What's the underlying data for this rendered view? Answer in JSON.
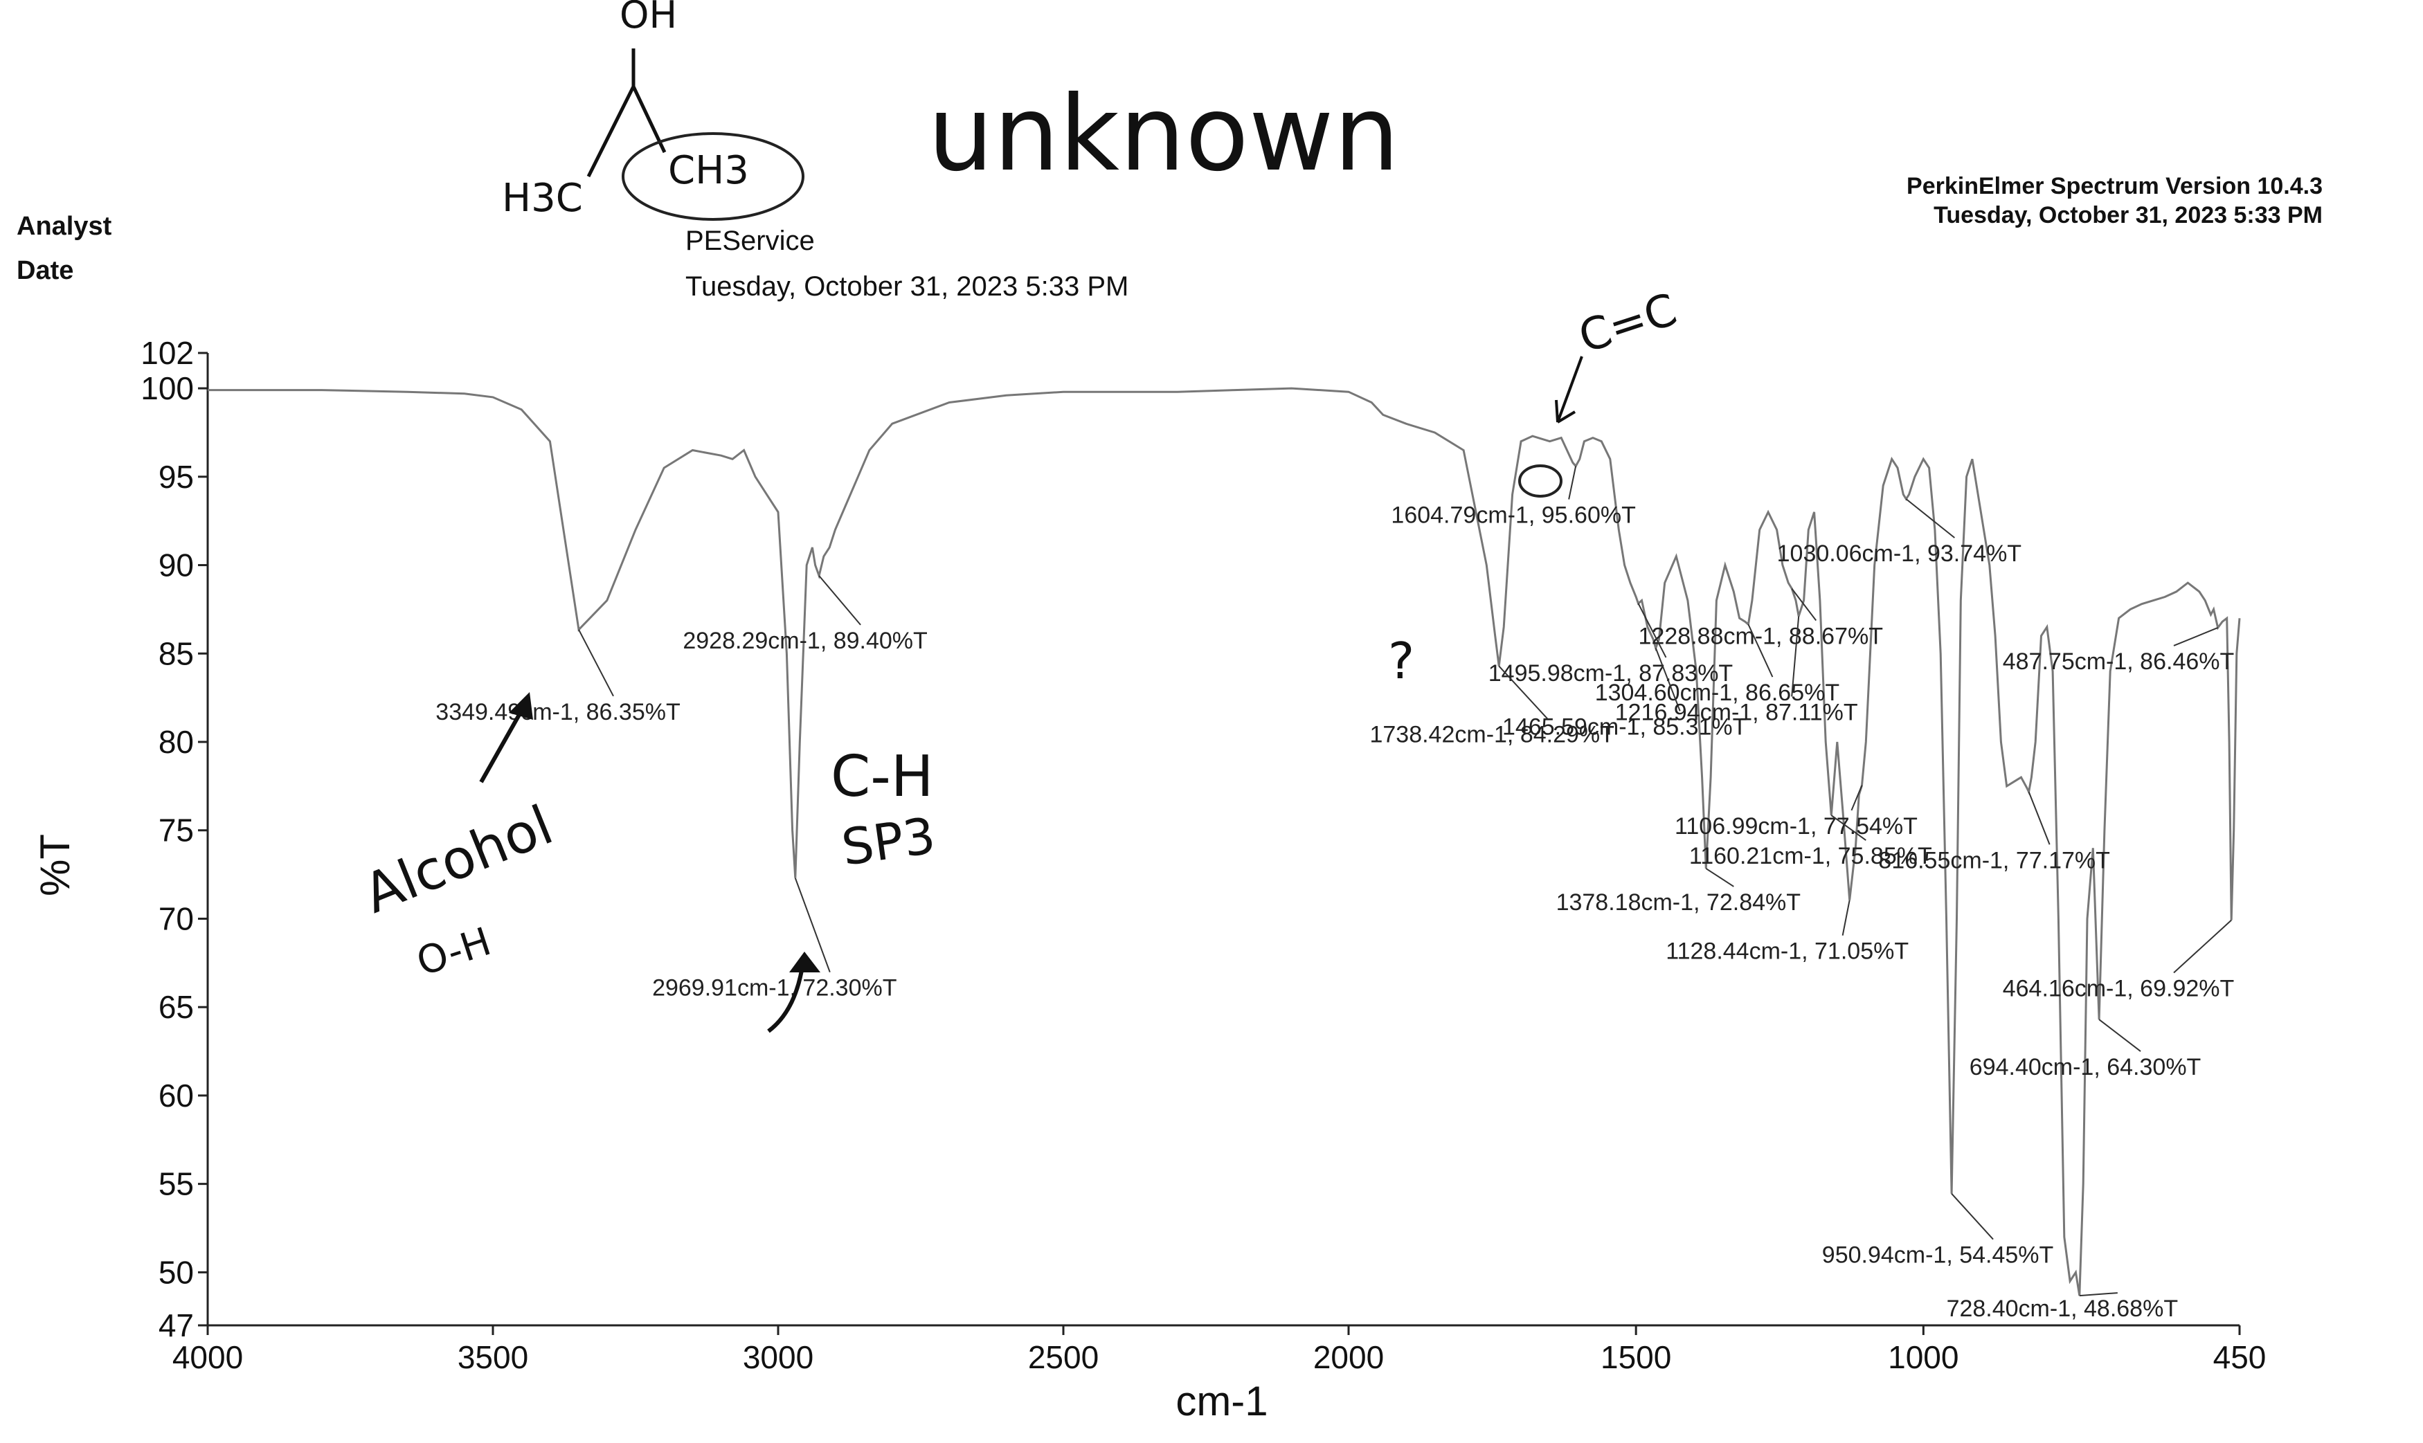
{
  "header": {
    "analyst_label": "Analyst",
    "date_label": "Date",
    "analyst_value": "PEService",
    "date_value": "Tuesday, October 31, 2023 5:33 PM",
    "software": "PerkinElmer Spectrum Version 10.4.3",
    "software_date": "Tuesday, October 31, 2023 5:33 PM"
  },
  "handwriting": {
    "title": "unknown",
    "structure_oh": "OH",
    "structure_h3c": "H3C",
    "structure_ch3": "CH3",
    "cc_note": "C=C",
    "question": "?",
    "alcohol": "Alcohol",
    "oh_bond": "O-H",
    "ch_bond": "C-H",
    "sp3": "SP3"
  },
  "chart_data": {
    "type": "line",
    "title": "",
    "xlabel": "cm-1",
    "ylabel": "%T",
    "xlim": [
      4000,
      450
    ],
    "ylim": [
      47,
      102
    ],
    "x_ticks": [
      4000,
      3500,
      3000,
      2500,
      2000,
      1500,
      1000,
      450
    ],
    "y_ticks": [
      102,
      100,
      95,
      90,
      85,
      80,
      75,
      70,
      65,
      60,
      55,
      50,
      47
    ],
    "grid": false,
    "series": [
      {
        "x": [
          4000,
          3800,
          3650,
          3550,
          3500,
          3450,
          3400,
          3349.49,
          3300,
          3250,
          3200,
          3150,
          3100,
          3080,
          3060,
          3040,
          3020,
          3000,
          2985,
          2975,
          2969.91,
          2962,
          2950,
          2940,
          2935,
          2928.29,
          2920,
          2910,
          2900,
          2880,
          2860,
          2840,
          2800,
          2700,
          2600,
          2500,
          2400,
          2300,
          2200,
          2100,
          2000,
          1960,
          1940,
          1900,
          1850,
          1800,
          1760,
          1745,
          1738.42,
          1730,
          1715,
          1700,
          1680,
          1650,
          1630,
          1620,
          1610,
          1604.79,
          1598,
          1590,
          1575,
          1560,
          1545,
          1530,
          1520,
          1510,
          1500,
          1495.98,
          1490,
          1480,
          1470,
          1465.59,
          1460,
          1450,
          1430,
          1410,
          1395,
          1385,
          1378.18,
          1370,
          1360,
          1345,
          1330,
          1320,
          1310,
          1304.6,
          1298,
          1285,
          1270,
          1255,
          1245,
          1235,
          1228.88,
          1222,
          1216.94,
          1208,
          1200,
          1190,
          1180,
          1170,
          1160.21,
          1150,
          1140,
          1128.44,
          1118,
          1112,
          1106.99,
          1100,
          1085,
          1070,
          1055,
          1045,
          1035,
          1030.06,
          1025,
          1015,
          1000,
          990,
          980,
          970,
          960,
          950.94,
          942,
          935,
          925,
          915,
          905,
          895,
          885,
          875,
          865,
          855,
          840,
          830,
          820,
          816.55,
          812,
          805,
          795,
          785,
          775,
          765,
          755,
          745,
          735,
          728.4,
          722,
          715,
          705,
          694.4,
          685,
          675,
          660,
          640,
          620,
          600,
          580,
          560,
          540,
          520,
          510,
          500,
          495,
          487.75,
          480,
          472,
          468,
          464.16,
          460,
          455,
          450
        ],
        "y": [
          99.9,
          99.9,
          99.8,
          99.7,
          99.5,
          98.8,
          97.0,
          86.35,
          88.0,
          92.0,
          95.5,
          96.5,
          96.2,
          96.0,
          96.5,
          95.0,
          94.0,
          93.0,
          85.0,
          75.0,
          72.3,
          80.0,
          90.0,
          91.0,
          90.0,
          89.4,
          90.5,
          91.0,
          92.0,
          93.5,
          95.0,
          96.5,
          98.0,
          99.2,
          99.6,
          99.8,
          99.8,
          99.8,
          99.9,
          100.0,
          99.8,
          99.2,
          98.5,
          98.0,
          97.5,
          96.5,
          90.0,
          86.0,
          84.29,
          86.5,
          94.0,
          97.0,
          97.3,
          97.0,
          97.2,
          96.5,
          95.8,
          95.6,
          96.0,
          97.0,
          97.2,
          97.0,
          96.0,
          92.0,
          90.0,
          89.0,
          88.2,
          87.83,
          88.0,
          86.5,
          85.8,
          85.31,
          85.8,
          89.0,
          90.5,
          88.0,
          84.0,
          78.0,
          72.84,
          78.0,
          88.0,
          90.0,
          88.5,
          87.0,
          86.8,
          86.65,
          88.0,
          92.0,
          93.0,
          92.0,
          90.0,
          89.0,
          88.67,
          88.0,
          87.11,
          88.0,
          92.0,
          93.0,
          88.0,
          80.0,
          75.85,
          80.0,
          76.0,
          71.05,
          74.0,
          77.0,
          77.54,
          80.0,
          90.0,
          94.5,
          96.0,
          95.5,
          94.0,
          93.74,
          94.0,
          95.0,
          96.0,
          95.5,
          92.0,
          85.0,
          70.0,
          54.45,
          70.0,
          88.0,
          95.0,
          96.0,
          94.0,
          92.0,
          90.0,
          86.0,
          80.0,
          77.5,
          77.8,
          78.0,
          77.4,
          77.17,
          78.0,
          80.0,
          86.0,
          86.5,
          84.0,
          70.0,
          52.0,
          49.5,
          50.0,
          48.68,
          55.0,
          70.0,
          74.0,
          64.3,
          75.0,
          84.0,
          87.0,
          87.5,
          87.8,
          88.0,
          88.2,
          88.5,
          89.0,
          88.5,
          88.0,
          87.2,
          87.5,
          86.46,
          86.8,
          87.0,
          80.0,
          69.92,
          75.0,
          85.0,
          87.0
        ]
      }
    ],
    "peak_labels": [
      {
        "wn": 3349.49,
        "t": 86.35,
        "text": "3349.49cm-1, 86.35%T"
      },
      {
        "wn": 2928.29,
        "t": 89.4,
        "text": "2928.29cm-1, 89.40%T"
      },
      {
        "wn": 2969.91,
        "t": 72.3,
        "text": "2969.91cm-1, 72.30%T"
      },
      {
        "wn": 1604.79,
        "t": 95.6,
        "text": "1604.79cm-1, 95.60%T"
      },
      {
        "wn": 1030.06,
        "t": 93.74,
        "text": "1030.06cm-1, 93.74%T"
      },
      {
        "wn": 1228.88,
        "t": 88.67,
        "text": "1228.88cm-1, 88.67%T"
      },
      {
        "wn": 1495.98,
        "t": 87.83,
        "text": "1495.98cm-1, 87.83%T"
      },
      {
        "wn": 1304.6,
        "t": 86.65,
        "text": "1304.60cm-1, 86.65%T"
      },
      {
        "wn": 1465.59,
        "t": 85.31,
        "text": "1465.59cm-1, 85.31%T"
      },
      {
        "wn": 1738.42,
        "t": 84.29,
        "text": "1738.42cm-1, 84.29%T"
      },
      {
        "wn": 1216.94,
        "t": 87.11,
        "text": "1216.94cm-1, 87.11%T"
      },
      {
        "wn": 487.75,
        "t": 86.46,
        "text": "487.75cm-1, 86.46%T"
      },
      {
        "wn": 1106.99,
        "t": 77.54,
        "text": "1106.99cm-1, 77.54%T"
      },
      {
        "wn": 816.55,
        "t": 77.17,
        "text": "816.55cm-1, 77.17%T"
      },
      {
        "wn": 1160.21,
        "t": 75.85,
        "text": "1160.21cm-1, 75.85%T"
      },
      {
        "wn": 1378.18,
        "t": 72.84,
        "text": "1378.18cm-1, 72.84%T"
      },
      {
        "wn": 1128.44,
        "t": 71.05,
        "text": "1128.44cm-1, 71.05%T"
      },
      {
        "wn": 464.16,
        "t": 69.92,
        "text": "464.16cm-1, 69.92%T"
      },
      {
        "wn": 694.4,
        "t": 64.3,
        "text": "694.40cm-1, 64.30%T"
      },
      {
        "wn": 950.94,
        "t": 54.45,
        "text": "950.94cm-1, 54.45%T"
      },
      {
        "wn": 728.4,
        "t": 48.68,
        "text": "728.40cm-1, 48.68%T"
      }
    ]
  }
}
